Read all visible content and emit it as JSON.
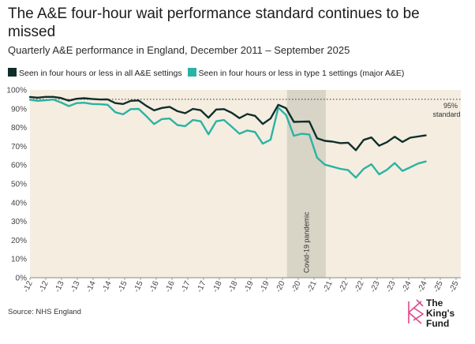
{
  "title": "The A&E four-hour wait performance standard continues to be missed",
  "subtitle": "Quarterly A&E performance in England, December 2011 – September 2025",
  "source": "Source: NHS England",
  "logo": {
    "text_line1": "The",
    "text_line2": "King's",
    "text_line3": "Fund"
  },
  "colors": {
    "all_settings": "#0f2e2a",
    "type1": "#2bb3a3",
    "plot_bg": "#f4ede0",
    "pandemic_band": "#d8d4c6",
    "logo_accent": "#e0468c"
  },
  "chart_data": {
    "type": "line",
    "title": "The A&E four-hour wait performance standard continues to be missed",
    "subtitle": "Quarterly A&E performance in England, December 2011 – September 2025",
    "xlabel": "",
    "ylabel": "",
    "ylim": [
      0,
      100
    ],
    "yticks": [
      "0%",
      "10%",
      "20%",
      "30%",
      "40%",
      "50%",
      "60%",
      "70%",
      "80%",
      "90%",
      "100%"
    ],
    "xticks": [
      "-12",
      "-12",
      "-13",
      "-13",
      "-14",
      "-14",
      "-15",
      "-15",
      "-16",
      "-16",
      "-17",
      "-17",
      "-18",
      "-18",
      "-19",
      "-19",
      "-20",
      "-20",
      "-21",
      "-21",
      "-22",
      "-22",
      "-23",
      "-23",
      "-24",
      "-24",
      "-25",
      "-25"
    ],
    "grid": false,
    "legend": "top-left",
    "x_start": 2011.92,
    "x_step": 0.25,
    "series": [
      {
        "name": "Seen in four hours or less in all A&E settings",
        "color": "#0f2e2a",
        "values": [
          96.2,
          95.9,
          96.3,
          96.3,
          95.7,
          94.3,
          95.3,
          95.6,
          95.2,
          94.9,
          95.0,
          93.0,
          92.5,
          94.2,
          94.4,
          91.5,
          89.1,
          90.4,
          91.0,
          88.7,
          87.6,
          89.9,
          89.2,
          85.2,
          89.6,
          89.8,
          87.8,
          85.0,
          87.2,
          86.2,
          81.9,
          84.8,
          92.1,
          90.3,
          83.0,
          83.1,
          83.2,
          74.3,
          72.9,
          72.5,
          71.7,
          71.9,
          67.9,
          73.4,
          74.7,
          70.3,
          72.2,
          75.1,
          72.3,
          74.6,
          75.2,
          75.8
        ]
      },
      {
        "name": "Seen in four hours or less in type 1 settings (major A&E)",
        "color": "#2bb3a3",
        "values": [
          94.8,
          94.2,
          94.5,
          94.9,
          93.3,
          91.4,
          93.0,
          93.2,
          92.5,
          92.4,
          92.1,
          88.1,
          87.0,
          89.8,
          89.9,
          86.0,
          81.8,
          84.5,
          84.8,
          81.3,
          80.7,
          84.0,
          83.3,
          76.4,
          83.3,
          84.0,
          80.4,
          76.7,
          78.4,
          77.6,
          71.4,
          73.5,
          90.6,
          86.7,
          75.6,
          76.7,
          76.3,
          63.9,
          60.2,
          59.1,
          58.0,
          57.3,
          53.3,
          58.0,
          60.4,
          55.1,
          57.5,
          61.1,
          56.9,
          58.8,
          60.8,
          61.9
        ]
      }
    ],
    "annotations": [
      {
        "label": "95%",
        "label2": "standard",
        "y": 95
      },
      {
        "label": "Covid-19 pandemic",
        "x_from": 2020.2,
        "x_to": 2021.45
      }
    ]
  }
}
